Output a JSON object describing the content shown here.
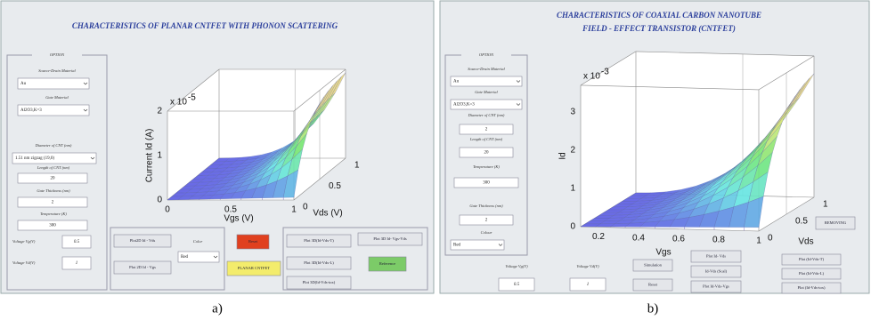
{
  "panels": [
    {
      "title_lines": [
        "CHARACTERISTICS OF PLANAR CNTFET WITH PHONON SCATTERING"
      ],
      "option_title": "OPTION",
      "fields": [
        {
          "label": "Source-Drain Material",
          "value": "Au"
        },
        {
          "label": "Gate Material",
          "value": "Al2O3,K=3"
        },
        {
          "label": "Diameter of CNT (nm)",
          "value": "1.51 nm zigzag (19,0)"
        },
        {
          "label": "Length of CNT (nm)",
          "value": "20"
        },
        {
          "label": "Gate Thickness (nm)",
          "value": "2"
        },
        {
          "label": "Temperature (K)",
          "value": "300"
        },
        {
          "label": "Voltage Vg(V)",
          "value": "0.5"
        },
        {
          "label": "Voltage Vd(V)",
          "value": "1"
        },
        {
          "label": "Color",
          "value": "Red"
        }
      ],
      "buttons": [
        "Plot2D Id - Vds",
        "Plot 2D Id - Vgs",
        "Reset",
        "PLANAR CNTFET",
        "Plot 3D(Id-Vds-T)",
        "Plot 3D Id- Vgs-Vds",
        "Plot 3D(Id-Vds-L)",
        "Plot 3D(Id-Vds-tox)",
        "Reference"
      ],
      "plot": {
        "z_label": "Current Id (A)",
        "x_label": "Vgs (V)",
        "y_label": "Vds (V)",
        "scale_base": "x 10",
        "scale_power": "-5",
        "z_ticks": [
          "0",
          "1",
          "2"
        ],
        "x_ticks": [
          "0",
          "0.5",
          "1"
        ],
        "y_ticks": [
          "0",
          "0.5",
          "1"
        ]
      },
      "caption": "a)"
    },
    {
      "title_lines": [
        "CHARACTERISTICS OF COAXIAL CARBON NANOTUBE",
        "FIELD - EFFECT TRANSISTOR (CNTFET)"
      ],
      "option_title": "OPTION",
      "fields": [
        {
          "label": "Source-Drain Material",
          "value": "Au"
        },
        {
          "label": "Gate Material",
          "value": "Al2O3,K=3"
        },
        {
          "label": "Diameter of CNT (nm)",
          "value": "2"
        },
        {
          "label": "Length of CNT (nm)",
          "value": "20"
        },
        {
          "label": "Temperature (K)",
          "value": "300"
        },
        {
          "label": "Gate Thickness (nm)",
          "value": "2"
        },
        {
          "label": "Colour",
          "value": "Red"
        },
        {
          "label": "Voltage Vg(V)",
          "value": "0.5"
        },
        {
          "label": "Voltage Vd(V)",
          "value": "1"
        }
      ],
      "buttons": [
        "REMOVING",
        "Simulation",
        "Reset",
        "Plot Id- Vds",
        "Id-Vds (Scal)",
        "Plot Id-Vds-Vgs",
        "Plot (Id-Vds-T)",
        "Plot (Id-Vds-L)",
        "Plot (Id-Vds-tox)"
      ],
      "plot": {
        "z_label": "Id",
        "x_label": "Vgs",
        "y_label": "Vds",
        "scale_base": "x 10",
        "scale_power": "-3",
        "z_ticks": [
          "0",
          "1",
          "2",
          "3"
        ],
        "x_ticks": [
          "0.2",
          "0.4",
          "0.6",
          "0.8",
          "1"
        ],
        "y_ticks": [
          "0",
          "0.5",
          "1"
        ]
      },
      "caption": "b)"
    }
  ]
}
